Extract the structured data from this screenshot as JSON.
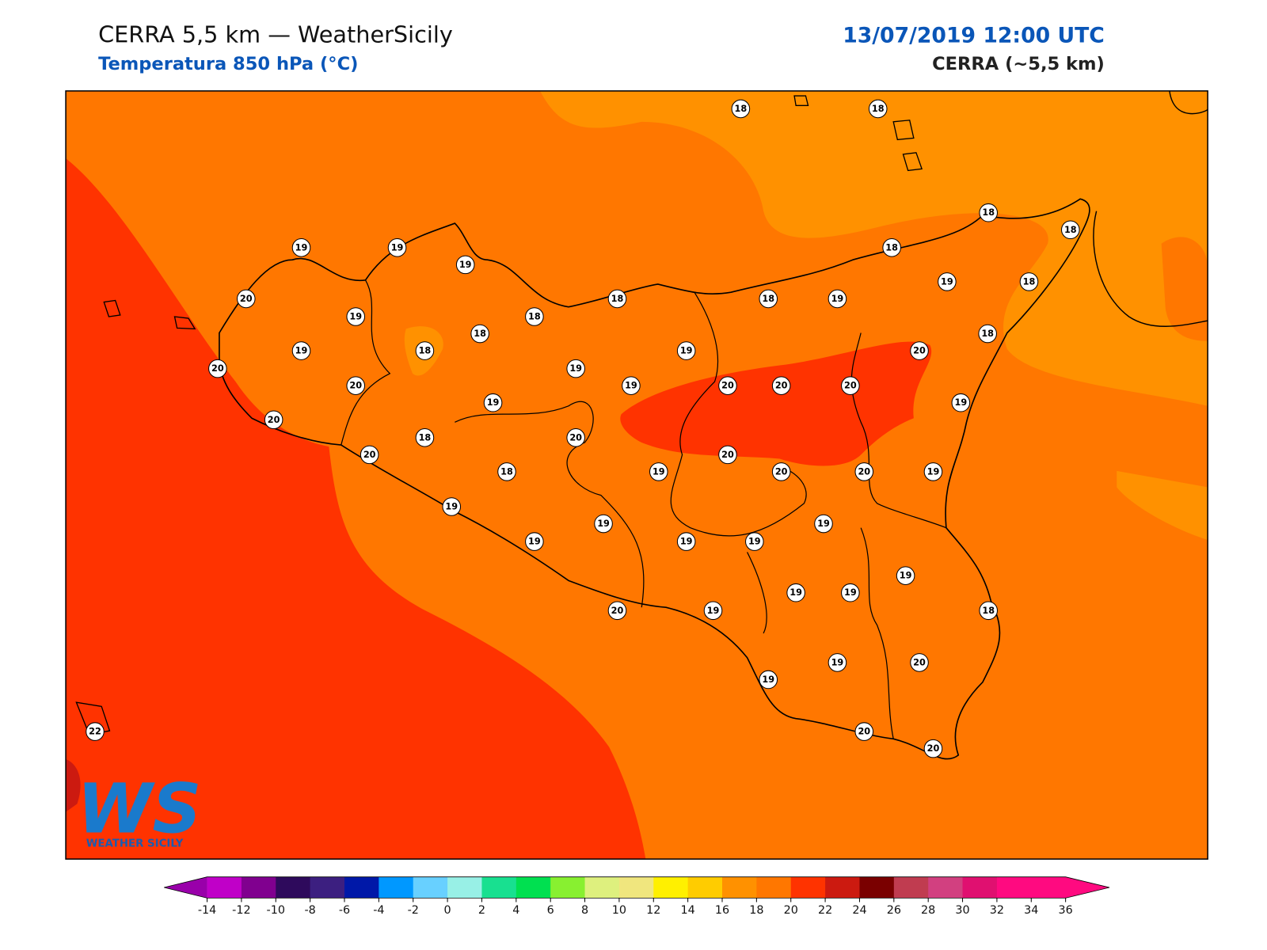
{
  "header": {
    "title": "CERRA 5,5 km — WeatherSicily",
    "subtitle": "Temperatura 850 hPa (°C)",
    "date": "13/07/2019 12:00 UTC",
    "model": "CERRA (~5,5 km)"
  },
  "points": [
    18,
    18,
    18,
    18,
    19,
    19,
    19,
    18,
    20,
    19,
    18,
    18,
    18,
    19,
    19,
    18,
    18,
    18,
    19,
    18,
    19,
    20,
    20,
    19,
    20,
    19,
    20,
    20,
    20,
    19,
    19,
    20,
    18,
    20,
    20,
    20,
    18,
    19,
    20,
    20,
    19,
    19,
    19,
    19,
    19,
    19,
    19,
    19,
    19,
    19,
    20,
    19,
    18,
    19,
    20,
    19,
    20,
    20,
    22
  ],
  "colorbar": {
    "ticks": [
      -14,
      -12,
      -10,
      -8,
      -6,
      -4,
      -2,
      0,
      2,
      4,
      6,
      8,
      10,
      12,
      14,
      16,
      18,
      20,
      22,
      24,
      26,
      28,
      30,
      32,
      34,
      36
    ],
    "colors": [
      "#c000c8",
      "#80008f",
      "#2e0a5c",
      "#3c1f80",
      "#0018a8",
      "#0098ff",
      "#68d0ff",
      "#98f0e6",
      "#18e090",
      "#00e050",
      "#88f030",
      "#def07e",
      "#f0e67e",
      "#fff000",
      "#ffcc00",
      "#ff9100",
      "#ff7700",
      "#ff3300",
      "#cc1a10",
      "#7a0000",
      "#c03c50",
      "#d24080",
      "#e01070",
      "#ff0a80",
      "#ff0a80"
    ],
    "under": "#9900aa",
    "over": "#ff0a80"
  },
  "logo": {
    "mark": "WS",
    "text": "WEATHER SICILY"
  }
}
